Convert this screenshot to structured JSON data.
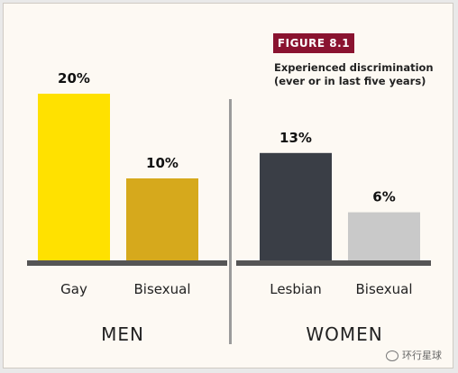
{
  "figure": {
    "badge": "FIGURE 8.1",
    "subtitle_line1": "Experienced discrimination",
    "subtitle_line2": "(ever or in last five years)"
  },
  "watermark": {
    "text": "环行星球",
    "icon": "chat-bubble-icon"
  },
  "colors": {
    "badge_bg": "#8a1330",
    "men_gay": "#ffe100",
    "men_bisexual": "#d6a91c",
    "women_lesbian": "#3a3e46",
    "women_bisexual": "#c9c9c9",
    "axis": "#555555",
    "divider": "#9b9b9b"
  },
  "chart_data": {
    "type": "bar",
    "title": "Experienced discrimination (ever or in last five years)",
    "ylim": [
      0,
      25
    ],
    "groups": [
      {
        "name": "MEN",
        "categories": [
          "Gay",
          "Bisexual"
        ],
        "values": [
          20,
          10
        ],
        "value_labels": [
          "20%",
          "10%"
        ],
        "colors": [
          "#ffe100",
          "#d6a91c"
        ]
      },
      {
        "name": "WOMEN",
        "categories": [
          "Lesbian",
          "Bisexual"
        ],
        "values": [
          13,
          6
        ],
        "value_labels": [
          "13%",
          "6%"
        ],
        "colors": [
          "#3a3e46",
          "#c9c9c9"
        ]
      }
    ]
  }
}
